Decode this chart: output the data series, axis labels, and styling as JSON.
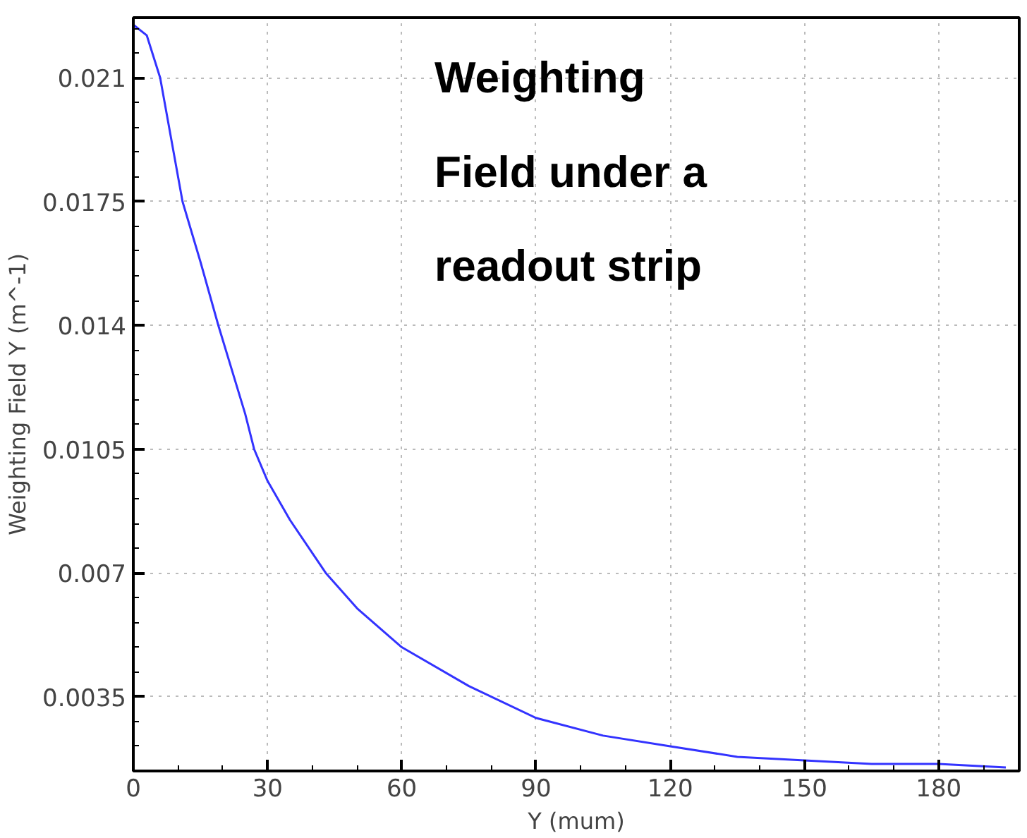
{
  "chart_data": {
    "type": "line",
    "title": "Weighting Field under a readout strip",
    "xlabel": "Y (mum)",
    "ylabel": "Weighting Field Y (m^-1)",
    "x": [
      0,
      3,
      6,
      11,
      15,
      19,
      25,
      27,
      30,
      35,
      43,
      50,
      60,
      75,
      90,
      105,
      120,
      135,
      150,
      165,
      180,
      195
    ],
    "series": [
      {
        "color": "#3333ff",
        "values": [
          0.0225,
          0.0222,
          0.021,
          0.0175,
          0.0158,
          0.014,
          0.0115,
          0.0105,
          0.0096,
          0.0085,
          0.007,
          0.006,
          0.0049,
          0.0038,
          0.0029,
          0.0024,
          0.0021,
          0.0018,
          0.0017,
          0.0016,
          0.0016,
          0.0015
        ]
      }
    ],
    "xlim": [
      0,
      198
    ],
    "ylim": [
      0.0014,
      0.0227
    ],
    "xticks": [
      0,
      30,
      60,
      90,
      120,
      150,
      180
    ],
    "yticks": [
      0.0035,
      0.007,
      0.0105,
      0.014,
      0.0175,
      0.021
    ],
    "grid": true,
    "marker": "none",
    "line_style": "solid"
  }
}
